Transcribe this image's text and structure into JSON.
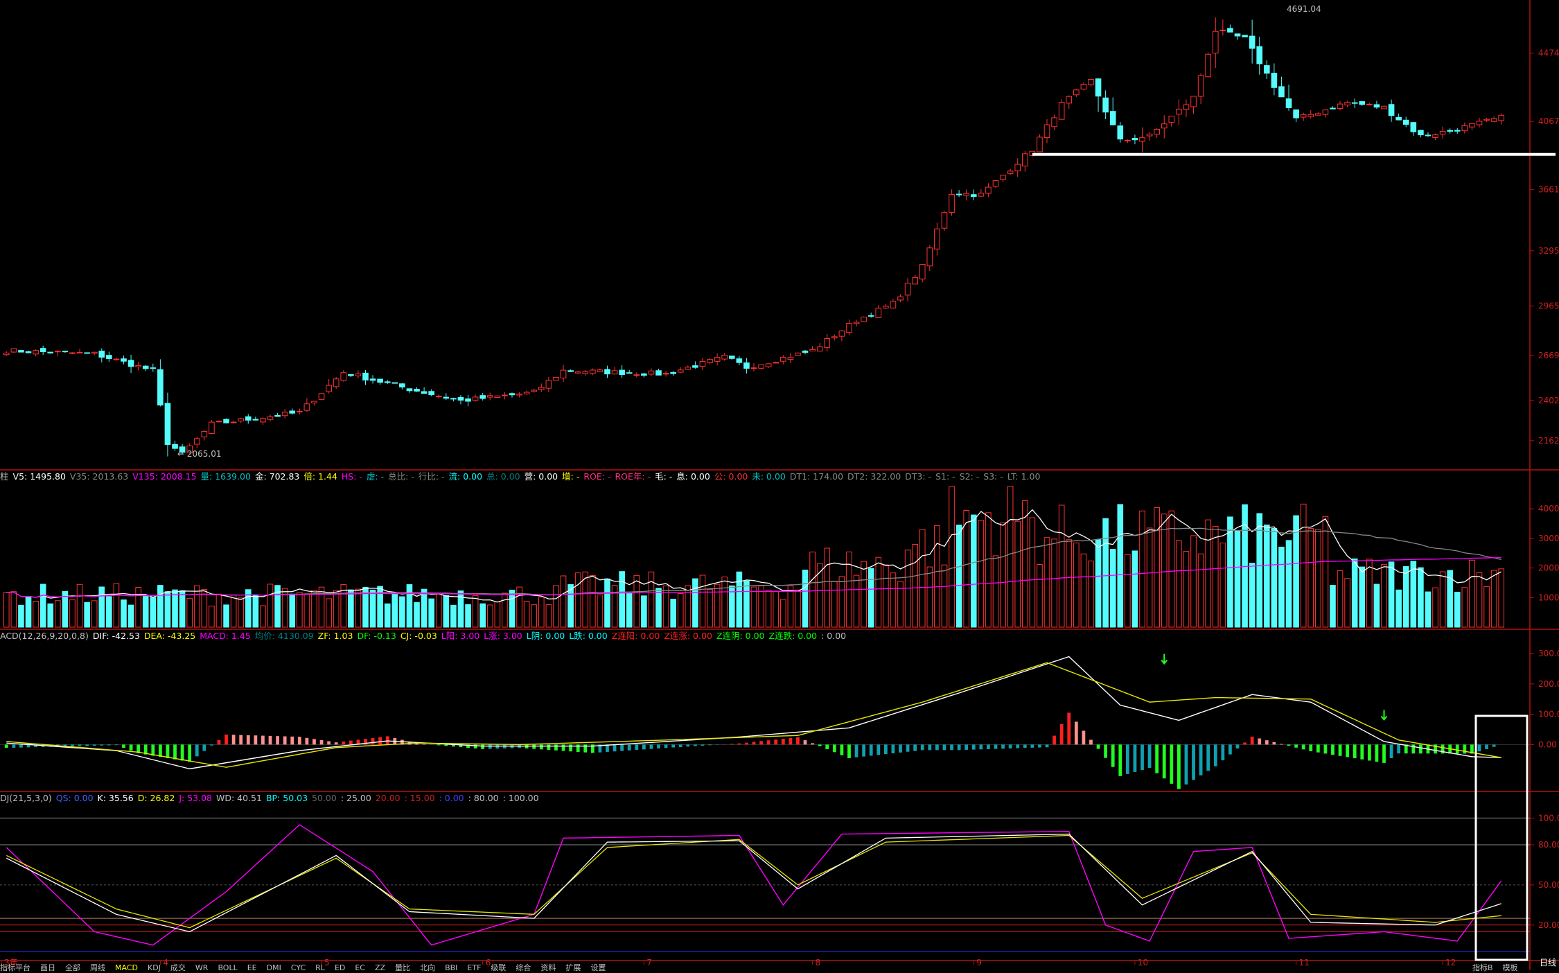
{
  "colors": {
    "up": "#ff3232",
    "up_fill": "#000000",
    "down": "#54fcfc",
    "axis": "#b4120c",
    "white": "#ffffff",
    "yellow": "#e6e600",
    "magenta": "#ff00ff",
    "grid": "#7a1010"
  },
  "price_panel": {
    "y_ticks": [
      "4474",
      "4067",
      "3661",
      "3295",
      "2965",
      "2669",
      "2402",
      "2162"
    ],
    "y_tick_values": [
      4474,
      4067,
      3661,
      3295,
      2965,
      2669,
      2402,
      2162
    ],
    "high_label": "4691.04",
    "low_label": "2065.01",
    "support_line_value": 3870
  },
  "volume_panel": {
    "header": [
      {
        "t": "柱",
        "c": "#c0c0c0"
      },
      {
        "t": "V5: 1495.80",
        "c": "#ffffff"
      },
      {
        "t": "V35: 2013.63",
        "c": "#888888"
      },
      {
        "t": "V135: 2008.15",
        "c": "#ff00ff"
      },
      {
        "t": "量: 1639.00",
        "c": "#00c0c0"
      },
      {
        "t": "金: 702.83",
        "c": "#ffffff"
      },
      {
        "t": "倍: 1.44",
        "c": "#ffff00"
      },
      {
        "t": "HS: -",
        "c": "#ff00ff"
      },
      {
        "t": "虚: -",
        "c": "#00c0c0"
      },
      {
        "t": "总比: -",
        "c": "#888888"
      },
      {
        "t": "行比: -",
        "c": "#888888"
      },
      {
        "t": "流: 0.00",
        "c": "#00ffff"
      },
      {
        "t": "总: 0.00",
        "c": "#008080"
      },
      {
        "t": "营: 0.00",
        "c": "#ffffff"
      },
      {
        "t": "增: -",
        "c": "#ffff00"
      },
      {
        "t": "ROE: -",
        "c": "#ff3080"
      },
      {
        "t": "ROE年: -",
        "c": "#ff3080"
      },
      {
        "t": "毛: -",
        "c": "#ffffff"
      },
      {
        "t": "息: 0.00",
        "c": "#ffffff"
      },
      {
        "t": "公: 0.00",
        "c": "#ff3030"
      },
      {
        "t": "未: 0.00",
        "c": "#00c0c0"
      },
      {
        "t": "DT1: 174.00",
        "c": "#888888"
      },
      {
        "t": "DT2: 322.00",
        "c": "#888888"
      },
      {
        "t": "DT3: -",
        "c": "#888888"
      },
      {
        "t": "S1: -",
        "c": "#888888"
      },
      {
        "t": "S2: -",
        "c": "#888888"
      },
      {
        "t": "S3: -",
        "c": "#888888"
      },
      {
        "t": "LT: 1.00",
        "c": "#888888"
      }
    ],
    "y_ticks": [
      "4000",
      "3000",
      "2000",
      "1000"
    ],
    "y_tick_values": [
      4000,
      3000,
      2000,
      1000
    ]
  },
  "macd_panel": {
    "header": [
      {
        "t": "ACD(12,26,9,20,0,8)",
        "c": "#c0c0c0"
      },
      {
        "t": "DIF: -42.53",
        "c": "#ffffff"
      },
      {
        "t": "DEA: -43.25",
        "c": "#ffff00"
      },
      {
        "t": "MACD: 1.45",
        "c": "#ff00ff"
      },
      {
        "t": "均价: 4130.09",
        "c": "#008080"
      },
      {
        "t": "ZF: 1.03",
        "c": "#ffff00"
      },
      {
        "t": "DF: -0.13",
        "c": "#00ff00"
      },
      {
        "t": "CJ: -0.03",
        "c": "#ffff00"
      },
      {
        "t": "L阳: 3.00",
        "c": "#ff00ff"
      },
      {
        "t": "L涨: 3.00",
        "c": "#ff00ff"
      },
      {
        "t": "L阴: 0.00",
        "c": "#00ffff"
      },
      {
        "t": "L跌: 0.00",
        "c": "#00ffff"
      },
      {
        "t": "Z连阳: 0.00",
        "c": "#ff2020"
      },
      {
        "t": "Z连涨: 0.00",
        "c": "#ff2020"
      },
      {
        "t": "Z连阴: 0.00",
        "c": "#00ff00"
      },
      {
        "t": "Z连跌: 0.00",
        "c": "#00ff00"
      },
      {
        "t": ": 0.00",
        "c": "#c0c0c0"
      }
    ],
    "y_ticks": [
      "300.00",
      "200.00",
      "100.00",
      "0.00"
    ],
    "y_tick_values": [
      300,
      200,
      100,
      0
    ]
  },
  "kdj_panel": {
    "header": [
      {
        "t": "DJ(21,5,3,0)",
        "c": "#c0c0c0"
      },
      {
        "t": "QS: 0.00",
        "c": "#4060ff"
      },
      {
        "t": "K: 35.56",
        "c": "#ffffff"
      },
      {
        "t": "D: 26.82",
        "c": "#ffff00"
      },
      {
        "t": "J: 53.08",
        "c": "#ff00ff"
      },
      {
        "t": "WD: 40.51",
        "c": "#c0c0c0"
      },
      {
        "t": "BP: 50.03",
        "c": "#00ffff"
      },
      {
        "t": "50.00",
        "c": "#666666"
      },
      {
        "t": ": 25.00",
        "c": "#c0c0c0"
      },
      {
        "t": "20.00",
        "c": "#cc2020"
      },
      {
        "t": ": 15.00",
        "c": "#cc2020"
      },
      {
        "t": ": 0.00",
        "c": "#4040ff"
      },
      {
        "t": ": 80.00",
        "c": "#c0c0c0"
      },
      {
        "t": ": 100.00",
        "c": "#c0c0c0"
      }
    ],
    "y_ticks": [
      "100.00",
      "80.00",
      "50.00",
      "20.00"
    ],
    "y_tick_values": [
      100,
      80,
      50,
      20
    ]
  },
  "month_labels": [
    "3年",
    "4",
    "5",
    "6",
    "7",
    "8",
    "9",
    "10",
    "11",
    "12"
  ],
  "bottom_right_label": "日线",
  "bottom_tabs": [
    "指标平台",
    "画日",
    "全部",
    "周线",
    "MACD",
    "KDJ",
    "成交",
    "WR",
    "BOLL",
    "EE",
    "DMI",
    "CYC",
    "RL",
    "ED",
    "EC",
    "ZZ",
    "量比",
    "北向",
    "BBI",
    "ETF",
    "级联",
    "综合",
    "资料",
    "扩展",
    "设置"
  ],
  "bottom_right_tabs": [
    "指标B",
    "模板"
  ],
  "chart_data": {
    "type": "candlestick",
    "title": "",
    "ylim": [
      2000,
      4750
    ],
    "n_bars": 205,
    "ohlc_keyframes": [
      {
        "i": 0,
        "c": 2700
      },
      {
        "i": 12,
        "c": 2680
      },
      {
        "i": 20,
        "c": 2580
      },
      {
        "i": 22,
        "c": 2150
      },
      {
        "i": 24,
        "c": 2080
      },
      {
        "i": 28,
        "c": 2260
      },
      {
        "i": 40,
        "c": 2330
      },
      {
        "i": 46,
        "c": 2570
      },
      {
        "i": 55,
        "c": 2470
      },
      {
        "i": 62,
        "c": 2400
      },
      {
        "i": 72,
        "c": 2450
      },
      {
        "i": 76,
        "c": 2580
      },
      {
        "i": 90,
        "c": 2560
      },
      {
        "i": 98,
        "c": 2660
      },
      {
        "i": 101,
        "c": 2600
      },
      {
        "i": 110,
        "c": 2700
      },
      {
        "i": 116,
        "c": 2880
      },
      {
        "i": 121,
        "c": 2980
      },
      {
        "i": 125,
        "c": 3200
      },
      {
        "i": 129,
        "c": 3640
      },
      {
        "i": 133,
        "c": 3630
      },
      {
        "i": 140,
        "c": 3900
      },
      {
        "i": 144,
        "c": 4170
      },
      {
        "i": 148,
        "c": 4310
      },
      {
        "i": 152,
        "c": 3950
      },
      {
        "i": 156,
        "c": 3980
      },
      {
        "i": 162,
        "c": 4210
      },
      {
        "i": 165,
        "c": 4610
      },
      {
        "i": 169,
        "c": 4560
      },
      {
        "i": 173,
        "c": 4280
      },
      {
        "i": 176,
        "c": 4080
      },
      {
        "i": 183,
        "c": 4180
      },
      {
        "i": 188,
        "c": 4150
      },
      {
        "i": 193,
        "c": 3980
      },
      {
        "i": 197,
        "c": 4010
      },
      {
        "i": 204,
        "c": 4090
      }
    ],
    "series": [
      {
        "name": "K",
        "values_at": [
          [
            0,
            70
          ],
          [
            15,
            28
          ],
          [
            25,
            15
          ],
          [
            45,
            72
          ],
          [
            55,
            30
          ],
          [
            72,
            25
          ],
          [
            82,
            82
          ],
          [
            100,
            83
          ],
          [
            108,
            47
          ],
          [
            120,
            85
          ],
          [
            145,
            88
          ],
          [
            155,
            35
          ],
          [
            170,
            75
          ],
          [
            178,
            22
          ],
          [
            195,
            20
          ],
          [
            204,
            36
          ]
        ]
      },
      {
        "name": "D",
        "values_at": [
          [
            0,
            72
          ],
          [
            15,
            32
          ],
          [
            25,
            18
          ],
          [
            45,
            70
          ],
          [
            55,
            32
          ],
          [
            72,
            28
          ],
          [
            82,
            78
          ],
          [
            100,
            84
          ],
          [
            108,
            50
          ],
          [
            120,
            82
          ],
          [
            145,
            87
          ],
          [
            155,
            40
          ],
          [
            170,
            74
          ],
          [
            178,
            28
          ],
          [
            195,
            22
          ],
          [
            204,
            27
          ]
        ]
      },
      {
        "name": "J",
        "values_at": [
          [
            0,
            78
          ],
          [
            12,
            15
          ],
          [
            20,
            5
          ],
          [
            30,
            45
          ],
          [
            40,
            95
          ],
          [
            50,
            60
          ],
          [
            58,
            5
          ],
          [
            72,
            28
          ],
          [
            76,
            85
          ],
          [
            100,
            87
          ],
          [
            106,
            35
          ],
          [
            114,
            88
          ],
          [
            145,
            90
          ],
          [
            150,
            20
          ],
          [
            156,
            8
          ],
          [
            162,
            75
          ],
          [
            170,
            78
          ],
          [
            175,
            10
          ],
          [
            188,
            15
          ],
          [
            198,
            8
          ],
          [
            204,
            53
          ]
        ]
      },
      {
        "name": "DIF",
        "values_at": [
          [
            0,
            5
          ],
          [
            15,
            -20
          ],
          [
            25,
            -80
          ],
          [
            40,
            -20
          ],
          [
            52,
            12
          ],
          [
            65,
            -5
          ],
          [
            80,
            -5
          ],
          [
            100,
            25
          ],
          [
            115,
            55
          ],
          [
            130,
            170
          ],
          [
            145,
            290
          ],
          [
            152,
            130
          ],
          [
            160,
            80
          ],
          [
            170,
            165
          ],
          [
            178,
            140
          ],
          [
            188,
            10
          ],
          [
            200,
            -40
          ],
          [
            204,
            -43
          ]
        ]
      },
      {
        "name": "DEA",
        "values_at": [
          [
            0,
            10
          ],
          [
            18,
            -25
          ],
          [
            30,
            -75
          ],
          [
            45,
            -10
          ],
          [
            56,
            5
          ],
          [
            70,
            0
          ],
          [
            90,
            15
          ],
          [
            108,
            30
          ],
          [
            125,
            140
          ],
          [
            142,
            270
          ],
          [
            156,
            140
          ],
          [
            165,
            155
          ],
          [
            178,
            150
          ],
          [
            190,
            15
          ],
          [
            204,
            -43
          ]
        ]
      }
    ]
  }
}
